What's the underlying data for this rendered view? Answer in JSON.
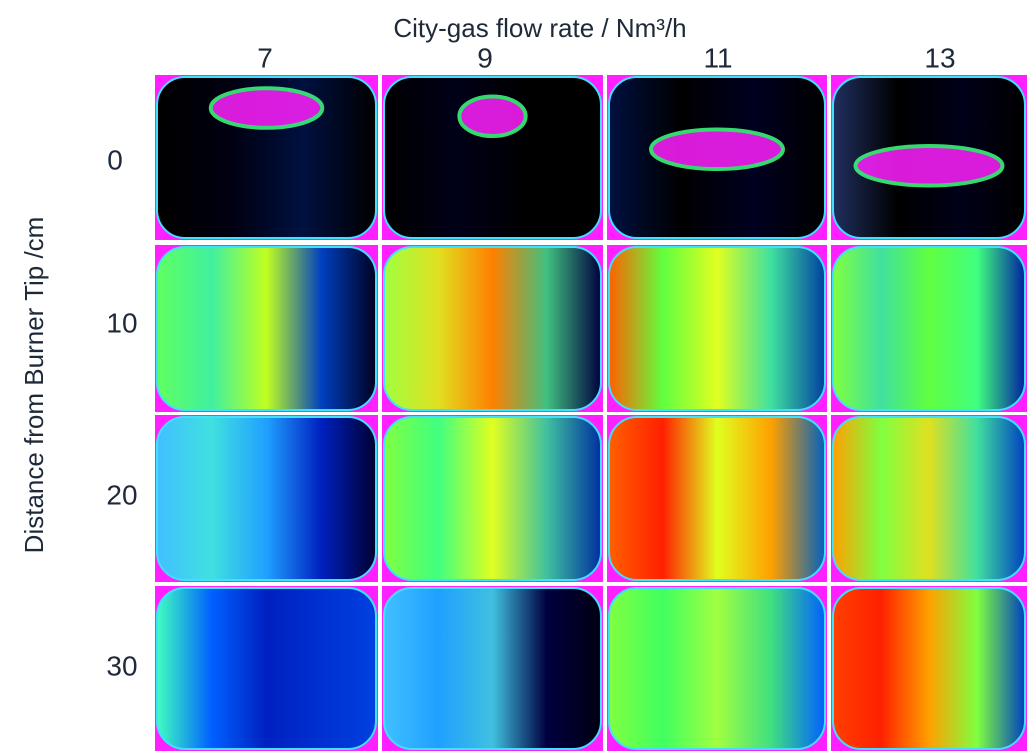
{
  "title": "City-gas flow rate / Nm³/h",
  "column_labels": [
    "7",
    "9",
    "11",
    "13"
  ],
  "row_labels": [
    "0",
    "10",
    "20",
    "30"
  ],
  "y_axis_label": "Distance from Burner Tip /cm"
}
